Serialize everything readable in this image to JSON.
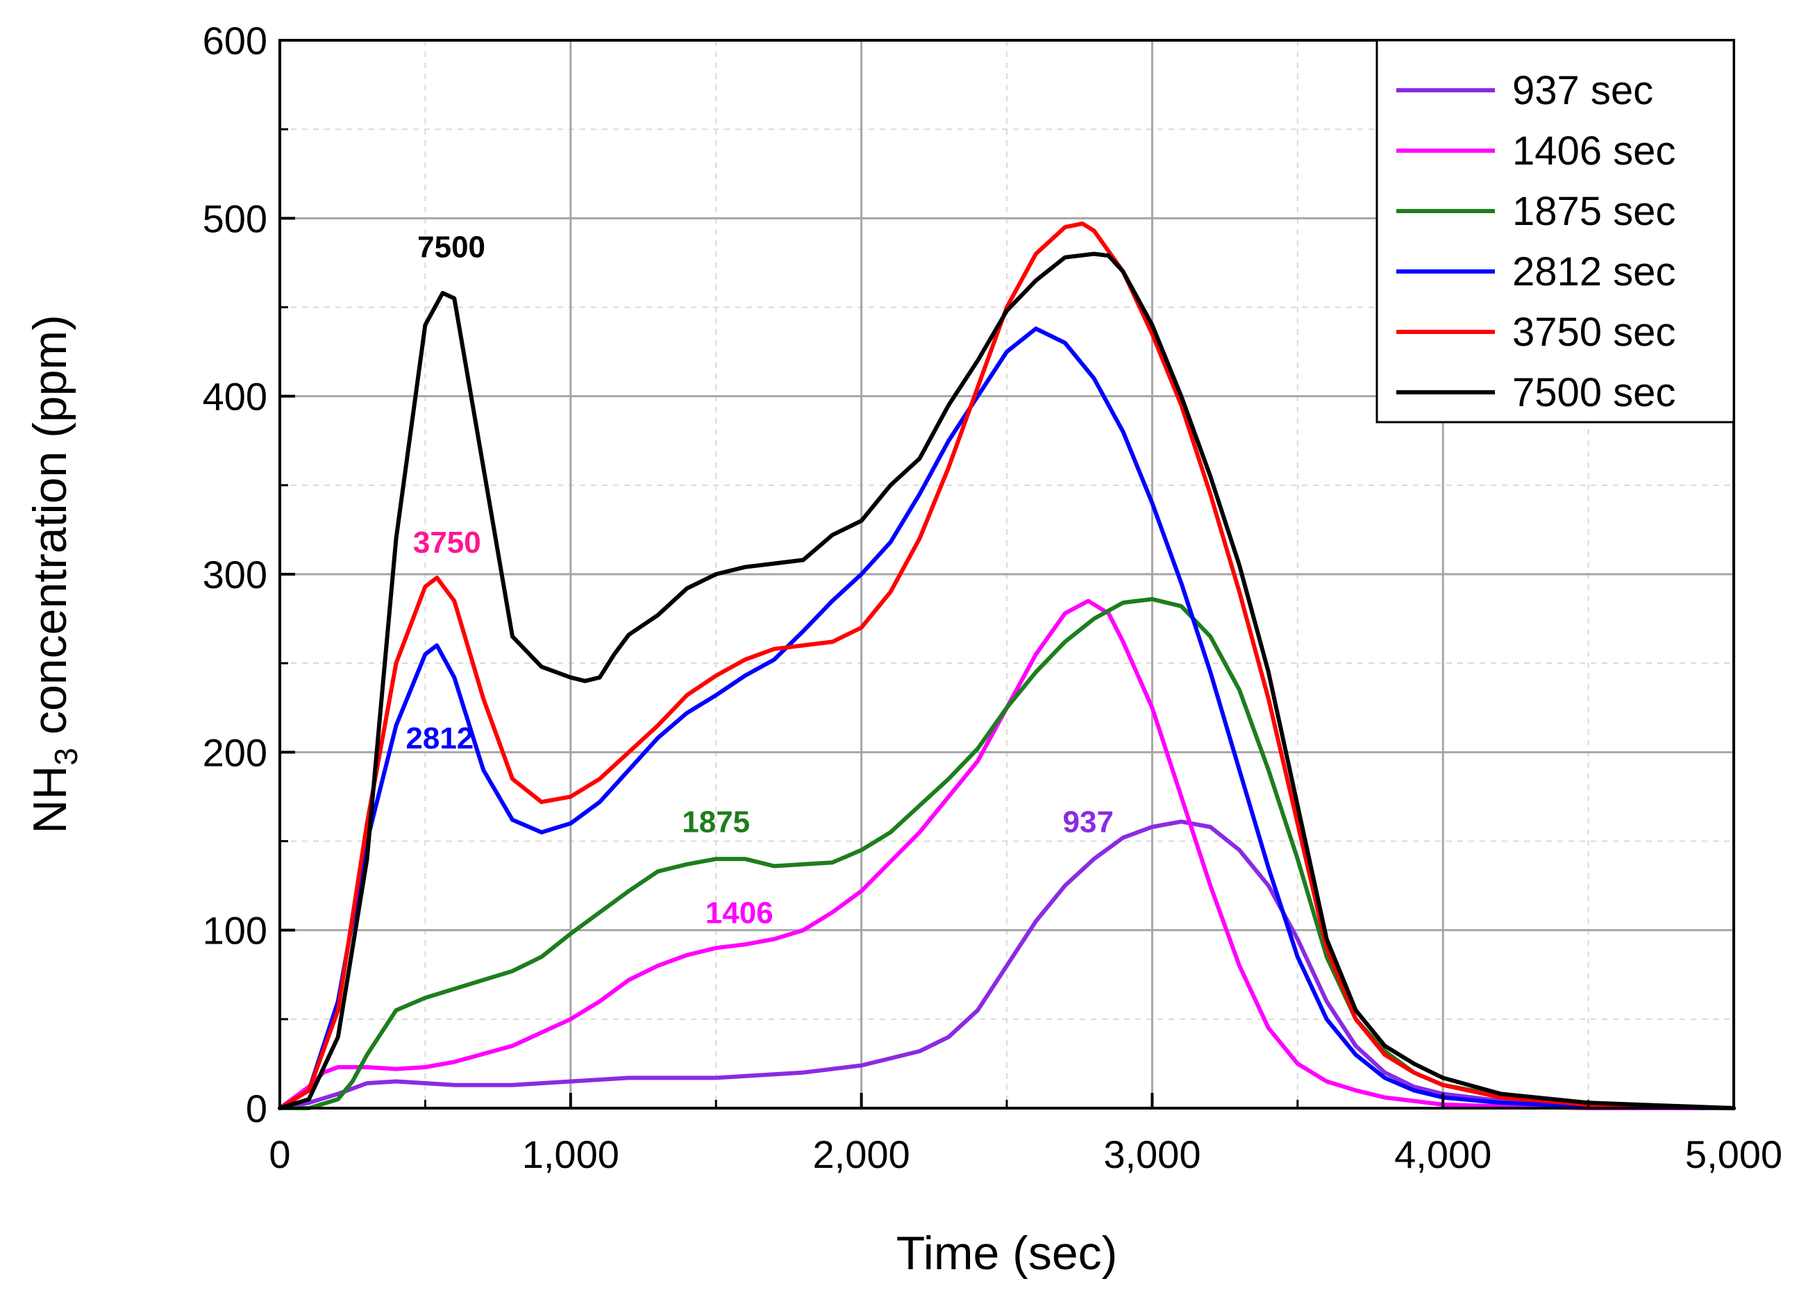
{
  "chart_data": {
    "type": "line",
    "title": "",
    "xlabel": "Time (sec)",
    "ylabel_main": "NH",
    "ylabel_sub": "3",
    "ylabel_rest": " concentration (ppm)",
    "xlim": [
      0,
      5000
    ],
    "ylim": [
      0,
      600
    ],
    "xticks": [
      0,
      1000,
      2000,
      3000,
      4000,
      5000
    ],
    "xtick_labels": [
      "0",
      "1,000",
      "2,000",
      "3,000",
      "4,000",
      "5,000"
    ],
    "yticks": [
      0,
      100,
      200,
      300,
      400,
      500,
      600
    ],
    "ytick_labels": [
      "0",
      "100",
      "200",
      "300",
      "400",
      "500",
      "600"
    ],
    "grid": true,
    "legend_position": "top-right",
    "series": [
      {
        "name": "937 sec",
        "color": "#8a2be2",
        "x": [
          0,
          100,
          200,
          300,
          400,
          600,
          800,
          1000,
          1200,
          1500,
          1800,
          2000,
          2200,
          2300,
          2400,
          2500,
          2600,
          2700,
          2800,
          2900,
          3000,
          3100,
          3200,
          3300,
          3400,
          3500,
          3600,
          3700,
          3800,
          3900,
          4000,
          4200,
          4500,
          4900,
          5000
        ],
        "y": [
          0,
          3,
          8,
          14,
          15,
          13,
          13,
          15,
          17,
          17,
          20,
          24,
          32,
          40,
          55,
          80,
          105,
          125,
          140,
          152,
          158,
          161,
          158,
          145,
          125,
          95,
          60,
          35,
          20,
          12,
          8,
          4,
          2,
          0,
          0
        ]
      },
      {
        "name": "1406 sec",
        "color": "#ff00ff",
        "x": [
          0,
          100,
          150,
          200,
          300,
          400,
          500,
          600,
          800,
          1000,
          1100,
          1200,
          1300,
          1400,
          1500,
          1600,
          1700,
          1800,
          1900,
          2000,
          2200,
          2400,
          2500,
          2600,
          2700,
          2780,
          2850,
          2900,
          3000,
          3100,
          3200,
          3300,
          3400,
          3500,
          3600,
          3700,
          3800,
          3900,
          4000,
          4200,
          4500,
          5000
        ],
        "y": [
          0,
          12,
          20,
          23,
          23,
          22,
          23,
          26,
          35,
          50,
          60,
          72,
          80,
          86,
          90,
          92,
          95,
          100,
          110,
          122,
          155,
          195,
          225,
          255,
          278,
          285,
          278,
          262,
          225,
          175,
          125,
          80,
          45,
          25,
          15,
          10,
          6,
          4,
          2,
          1,
          0,
          0
        ]
      },
      {
        "name": "1875 sec",
        "color": "#1e7d1e",
        "x": [
          0,
          100,
          200,
          250,
          300,
          400,
          500,
          600,
          700,
          800,
          900,
          1000,
          1100,
          1200,
          1300,
          1400,
          1500,
          1600,
          1700,
          1800,
          1900,
          2000,
          2100,
          2200,
          2300,
          2400,
          2500,
          2600,
          2700,
          2800,
          2900,
          3000,
          3100,
          3200,
          3300,
          3400,
          3500,
          3600,
          3700,
          3800,
          3900,
          4000,
          4200,
          4500,
          4900,
          5000
        ],
        "y": [
          0,
          0,
          5,
          15,
          30,
          55,
          62,
          67,
          72,
          77,
          85,
          98,
          110,
          122,
          133,
          137,
          140,
          140,
          136,
          137,
          138,
          145,
          155,
          170,
          185,
          202,
          225,
          245,
          262,
          275,
          284,
          286,
          282,
          265,
          235,
          190,
          140,
          85,
          50,
          32,
          20,
          13,
          7,
          3,
          0,
          0
        ]
      },
      {
        "name": "2812 sec",
        "color": "#0000ff",
        "x": [
          0,
          100,
          200,
          300,
          400,
          500,
          540,
          600,
          700,
          800,
          900,
          1000,
          1100,
          1200,
          1300,
          1400,
          1500,
          1600,
          1700,
          1800,
          1900,
          2000,
          2100,
          2200,
          2300,
          2400,
          2500,
          2600,
          2700,
          2800,
          2900,
          3000,
          3100,
          3200,
          3300,
          3400,
          3500,
          3600,
          3700,
          3800,
          3900,
          4000,
          4200,
          4500,
          5000
        ],
        "y": [
          0,
          10,
          60,
          150,
          215,
          255,
          260,
          242,
          190,
          162,
          155,
          160,
          172,
          190,
          208,
          222,
          232,
          243,
          252,
          268,
          285,
          300,
          318,
          345,
          375,
          400,
          425,
          438,
          430,
          410,
          380,
          340,
          295,
          245,
          190,
          135,
          85,
          50,
          30,
          17,
          10,
          6,
          3,
          1,
          0
        ]
      },
      {
        "name": "3750 sec",
        "color": "#ff0000",
        "x": [
          0,
          100,
          200,
          300,
          400,
          500,
          540,
          600,
          700,
          800,
          900,
          1000,
          1100,
          1200,
          1300,
          1400,
          1500,
          1600,
          1700,
          1800,
          1900,
          2000,
          2100,
          2200,
          2300,
          2400,
          2500,
          2600,
          2700,
          2760,
          2800,
          2900,
          3000,
          3100,
          3200,
          3300,
          3400,
          3500,
          3600,
          3700,
          3800,
          3900,
          4000,
          4200,
          4500,
          5000
        ],
        "y": [
          0,
          10,
          55,
          160,
          250,
          293,
          298,
          285,
          230,
          185,
          172,
          175,
          185,
          200,
          215,
          232,
          243,
          252,
          258,
          260,
          262,
          270,
          290,
          320,
          360,
          405,
          450,
          480,
          495,
          497,
          493,
          470,
          435,
          395,
          345,
          290,
          230,
          160,
          90,
          50,
          30,
          20,
          13,
          6,
          2,
          0
        ]
      },
      {
        "name": "7500 sec",
        "color": "#000000",
        "x": [
          0,
          100,
          200,
          300,
          400,
          500,
          560,
          600,
          700,
          800,
          900,
          1000,
          1050,
          1100,
          1150,
          1200,
          1300,
          1400,
          1500,
          1600,
          1700,
          1800,
          1900,
          2000,
          2100,
          2200,
          2300,
          2400,
          2500,
          2600,
          2700,
          2800,
          2850,
          2900,
          3000,
          3100,
          3200,
          3300,
          3400,
          3500,
          3600,
          3700,
          3800,
          3900,
          4000,
          4200,
          4500,
          5000
        ],
        "y": [
          0,
          5,
          40,
          140,
          320,
          440,
          458,
          455,
          360,
          265,
          248,
          242,
          240,
          242,
          255,
          266,
          277,
          292,
          300,
          304,
          306,
          308,
          322,
          330,
          350,
          365,
          395,
          420,
          448,
          465,
          478,
          480,
          479,
          470,
          440,
          400,
          355,
          305,
          245,
          170,
          95,
          55,
          35,
          25,
          17,
          8,
          3,
          0
        ]
      }
    ],
    "annotations": [
      {
        "text": "7500",
        "x": 590,
        "y": 478,
        "color": "#000000"
      },
      {
        "text": "3750",
        "x": 575,
        "y": 312,
        "color": "#ff1493"
      },
      {
        "text": "2812",
        "x": 550,
        "y": 202,
        "color": "#0000ff"
      },
      {
        "text": "1875",
        "x": 1500,
        "y": 155,
        "color": "#1e7d1e"
      },
      {
        "text": "1406",
        "x": 1580,
        "y": 104,
        "color": "#ff00ff"
      },
      {
        "text": "937",
        "x": 2780,
        "y": 155,
        "color": "#8a2be2"
      }
    ]
  }
}
